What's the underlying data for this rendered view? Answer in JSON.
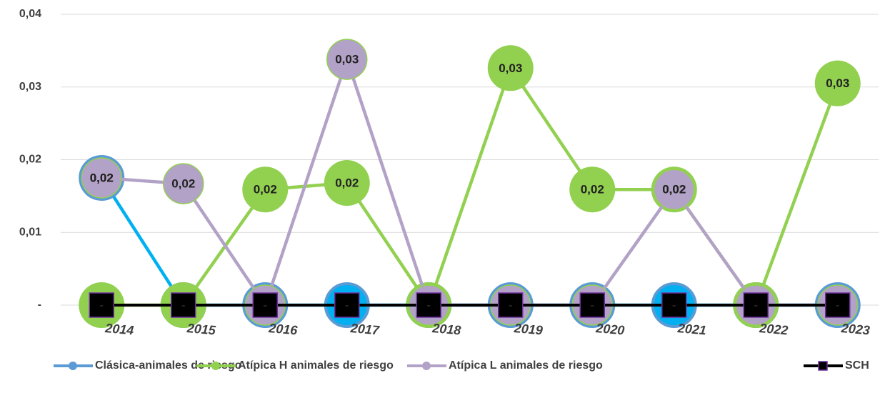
{
  "chart_data": {
    "type": "line",
    "categories": [
      "2014",
      "2015",
      "2016",
      "2017",
      "2018",
      "2019",
      "2020",
      "2021",
      "2022",
      "2023"
    ],
    "series": [
      {
        "name": "Clásica-animales de riesgo",
        "color": "#00b0f0",
        "marker_color": "#5b9bd5",
        "values": [
          0.0175,
          0,
          0,
          0,
          0,
          0,
          0,
          0,
          0,
          0
        ],
        "value_labels": [
          "0,02",
          "-",
          "-",
          "-",
          "-",
          "-",
          "-",
          "-",
          "-",
          "-"
        ]
      },
      {
        "name": "Atípica H animales de riesgo",
        "color": "#92d050",
        "marker_color": "#92d050",
        "values": [
          0,
          0,
          0.0159,
          0.0168,
          0,
          0.0326,
          0.0159,
          0.0159,
          0,
          0.0305
        ],
        "value_labels": [
          "-",
          "-",
          "0,02",
          "0,02",
          "-",
          "0,03",
          "0,02",
          "0,02",
          "-",
          "0,03"
        ]
      },
      {
        "name": "Atípica L animales de riesgo",
        "color": "#b3a2c7",
        "marker_color": "#b3a2c7",
        "values": [
          0.0175,
          0.0167,
          0,
          0.0338,
          0,
          0,
          0,
          0.0159,
          0,
          0
        ],
        "value_labels": [
          "0,02",
          "0,02",
          "-",
          "0,03",
          "-",
          "-",
          "-",
          "0,02",
          "-",
          "-"
        ]
      },
      {
        "name": "SCH",
        "color": "#000000",
        "marker_color": "#000000",
        "values": [
          0,
          0,
          0,
          0,
          0,
          0,
          0,
          0,
          0,
          0
        ],
        "value_labels": [
          "-",
          "-",
          "-",
          "-",
          "-",
          "-",
          "-",
          "-",
          "-",
          "-"
        ]
      }
    ],
    "ylim": [
      0,
      0.04
    ],
    "yticks": [
      {
        "value": 0,
        "label": "-"
      },
      {
        "value": 0.01,
        "label": "0,01"
      },
      {
        "value": 0.02,
        "label": "0,02"
      },
      {
        "value": 0.03,
        "label": "0,03"
      },
      {
        "value": 0.04,
        "label": "0,04"
      }
    ],
    "grid": true,
    "legend": "bottom"
  }
}
